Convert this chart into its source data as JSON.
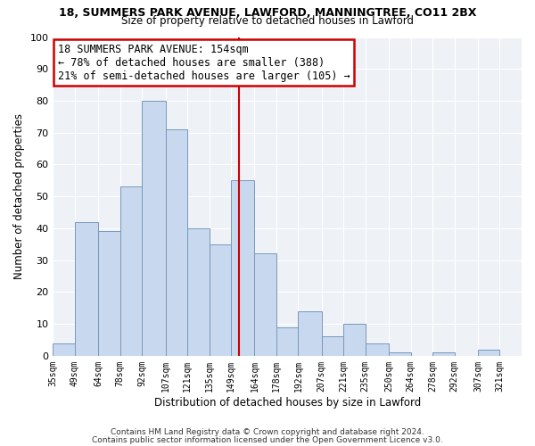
{
  "title_top": "18, SUMMERS PARK AVENUE, LAWFORD, MANNINGTREE, CO11 2BX",
  "title_sub": "Size of property relative to detached houses in Lawford",
  "xlabel": "Distribution of detached houses by size in Lawford",
  "ylabel": "Number of detached properties",
  "bar_color": "#c8d8ee",
  "bar_edge_color": "#7799bb",
  "categories": [
    "35sqm",
    "49sqm",
    "64sqm",
    "78sqm",
    "92sqm",
    "107sqm",
    "121sqm",
    "135sqm",
    "149sqm",
    "164sqm",
    "178sqm",
    "192sqm",
    "207sqm",
    "221sqm",
    "235sqm",
    "250sqm",
    "264sqm",
    "278sqm",
    "292sqm",
    "307sqm",
    "321sqm"
  ],
  "values": [
    4,
    42,
    39,
    53,
    80,
    71,
    40,
    35,
    55,
    32,
    9,
    14,
    6,
    10,
    4,
    1,
    0,
    1,
    0,
    2,
    0
  ],
  "bin_edges": [
    35,
    49,
    64,
    78,
    92,
    107,
    121,
    135,
    149,
    164,
    178,
    192,
    207,
    221,
    235,
    250,
    264,
    278,
    292,
    307,
    321,
    335
  ],
  "vline_x": 154,
  "vline_color": "#cc0000",
  "ylim": [
    0,
    100
  ],
  "annotation_line1": "18 SUMMERS PARK AVENUE: 154sqm",
  "annotation_line2": "← 78% of detached houses are smaller (388)",
  "annotation_line3": "21% of semi-detached houses are larger (105) →",
  "annotation_box_color": "#ffffff",
  "annotation_border_color": "#cc0000",
  "footnote1": "Contains HM Land Registry data © Crown copyright and database right 2024.",
  "footnote2": "Contains public sector information licensed under the Open Government Licence v3.0.",
  "background_color": "#eef2f7",
  "grid_color": "#ffffff"
}
